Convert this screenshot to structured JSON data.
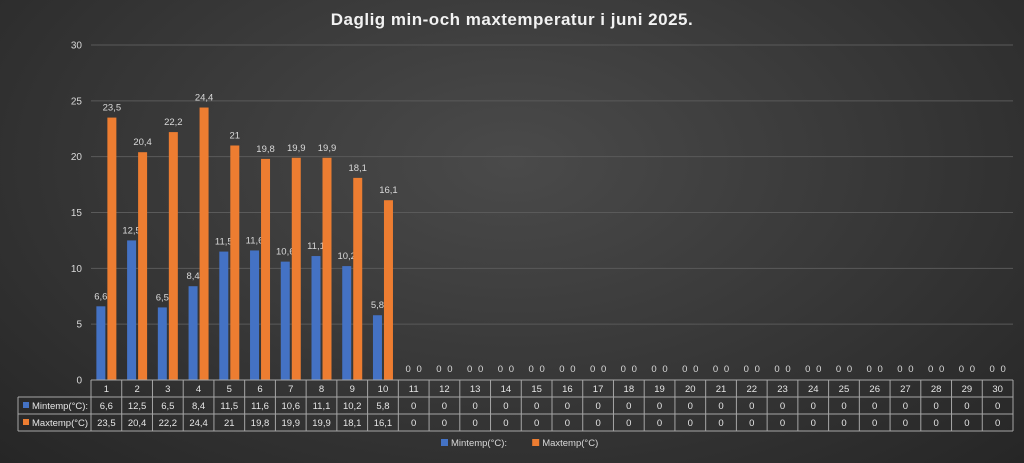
{
  "chart_data": {
    "type": "bar",
    "title": "Daglig min-och maxtemperatur i juni 2025.",
    "categories": [
      "1",
      "2",
      "3",
      "4",
      "5",
      "6",
      "7",
      "8",
      "9",
      "10",
      "11",
      "12",
      "13",
      "14",
      "15",
      "16",
      "17",
      "18",
      "19",
      "20",
      "21",
      "22",
      "23",
      "24",
      "25",
      "26",
      "27",
      "28",
      "29",
      "30"
    ],
    "series": [
      {
        "name": "Mintemp(°C):",
        "color": "#4472c4",
        "values": [
          6.6,
          12.5,
          6.5,
          8.4,
          11.5,
          11.6,
          10.6,
          11.1,
          10.2,
          5.8,
          0,
          0,
          0,
          0,
          0,
          0,
          0,
          0,
          0,
          0,
          0,
          0,
          0,
          0,
          0,
          0,
          0,
          0,
          0,
          0
        ],
        "labels": [
          "6,6",
          "12,5",
          "6,5",
          "8,4",
          "11,5",
          "11,6",
          "10,6",
          "11,1",
          "10,2",
          "5,8",
          "0",
          "0",
          "0",
          "0",
          "0",
          "0",
          "0",
          "0",
          "0",
          "0",
          "0",
          "0",
          "0",
          "0",
          "0",
          "0",
          "0",
          "0",
          "0",
          "0"
        ]
      },
      {
        "name": "Maxtemp(°C)",
        "color": "#ed7d31",
        "values": [
          23.5,
          20.4,
          22.2,
          24.4,
          21,
          19.8,
          19.9,
          19.9,
          18.1,
          16.1,
          0,
          0,
          0,
          0,
          0,
          0,
          0,
          0,
          0,
          0,
          0,
          0,
          0,
          0,
          0,
          0,
          0,
          0,
          0,
          0
        ],
        "labels": [
          "23,5",
          "20,4",
          "22,2",
          "24,4",
          "21",
          "19,8",
          "19,9",
          "19,9",
          "18,1",
          "16,1",
          "0",
          "0",
          "0",
          "0",
          "0",
          "0",
          "0",
          "0",
          "0",
          "0",
          "0",
          "0",
          "0",
          "0",
          "0",
          "0",
          "0",
          "0",
          "0",
          "0"
        ]
      }
    ],
    "ylim": [
      0,
      30
    ],
    "yticks": [
      "0",
      "5",
      "10",
      "15",
      "20",
      "25",
      "30"
    ],
    "grid": true,
    "data_table": true,
    "legend_position": "bottom"
  }
}
